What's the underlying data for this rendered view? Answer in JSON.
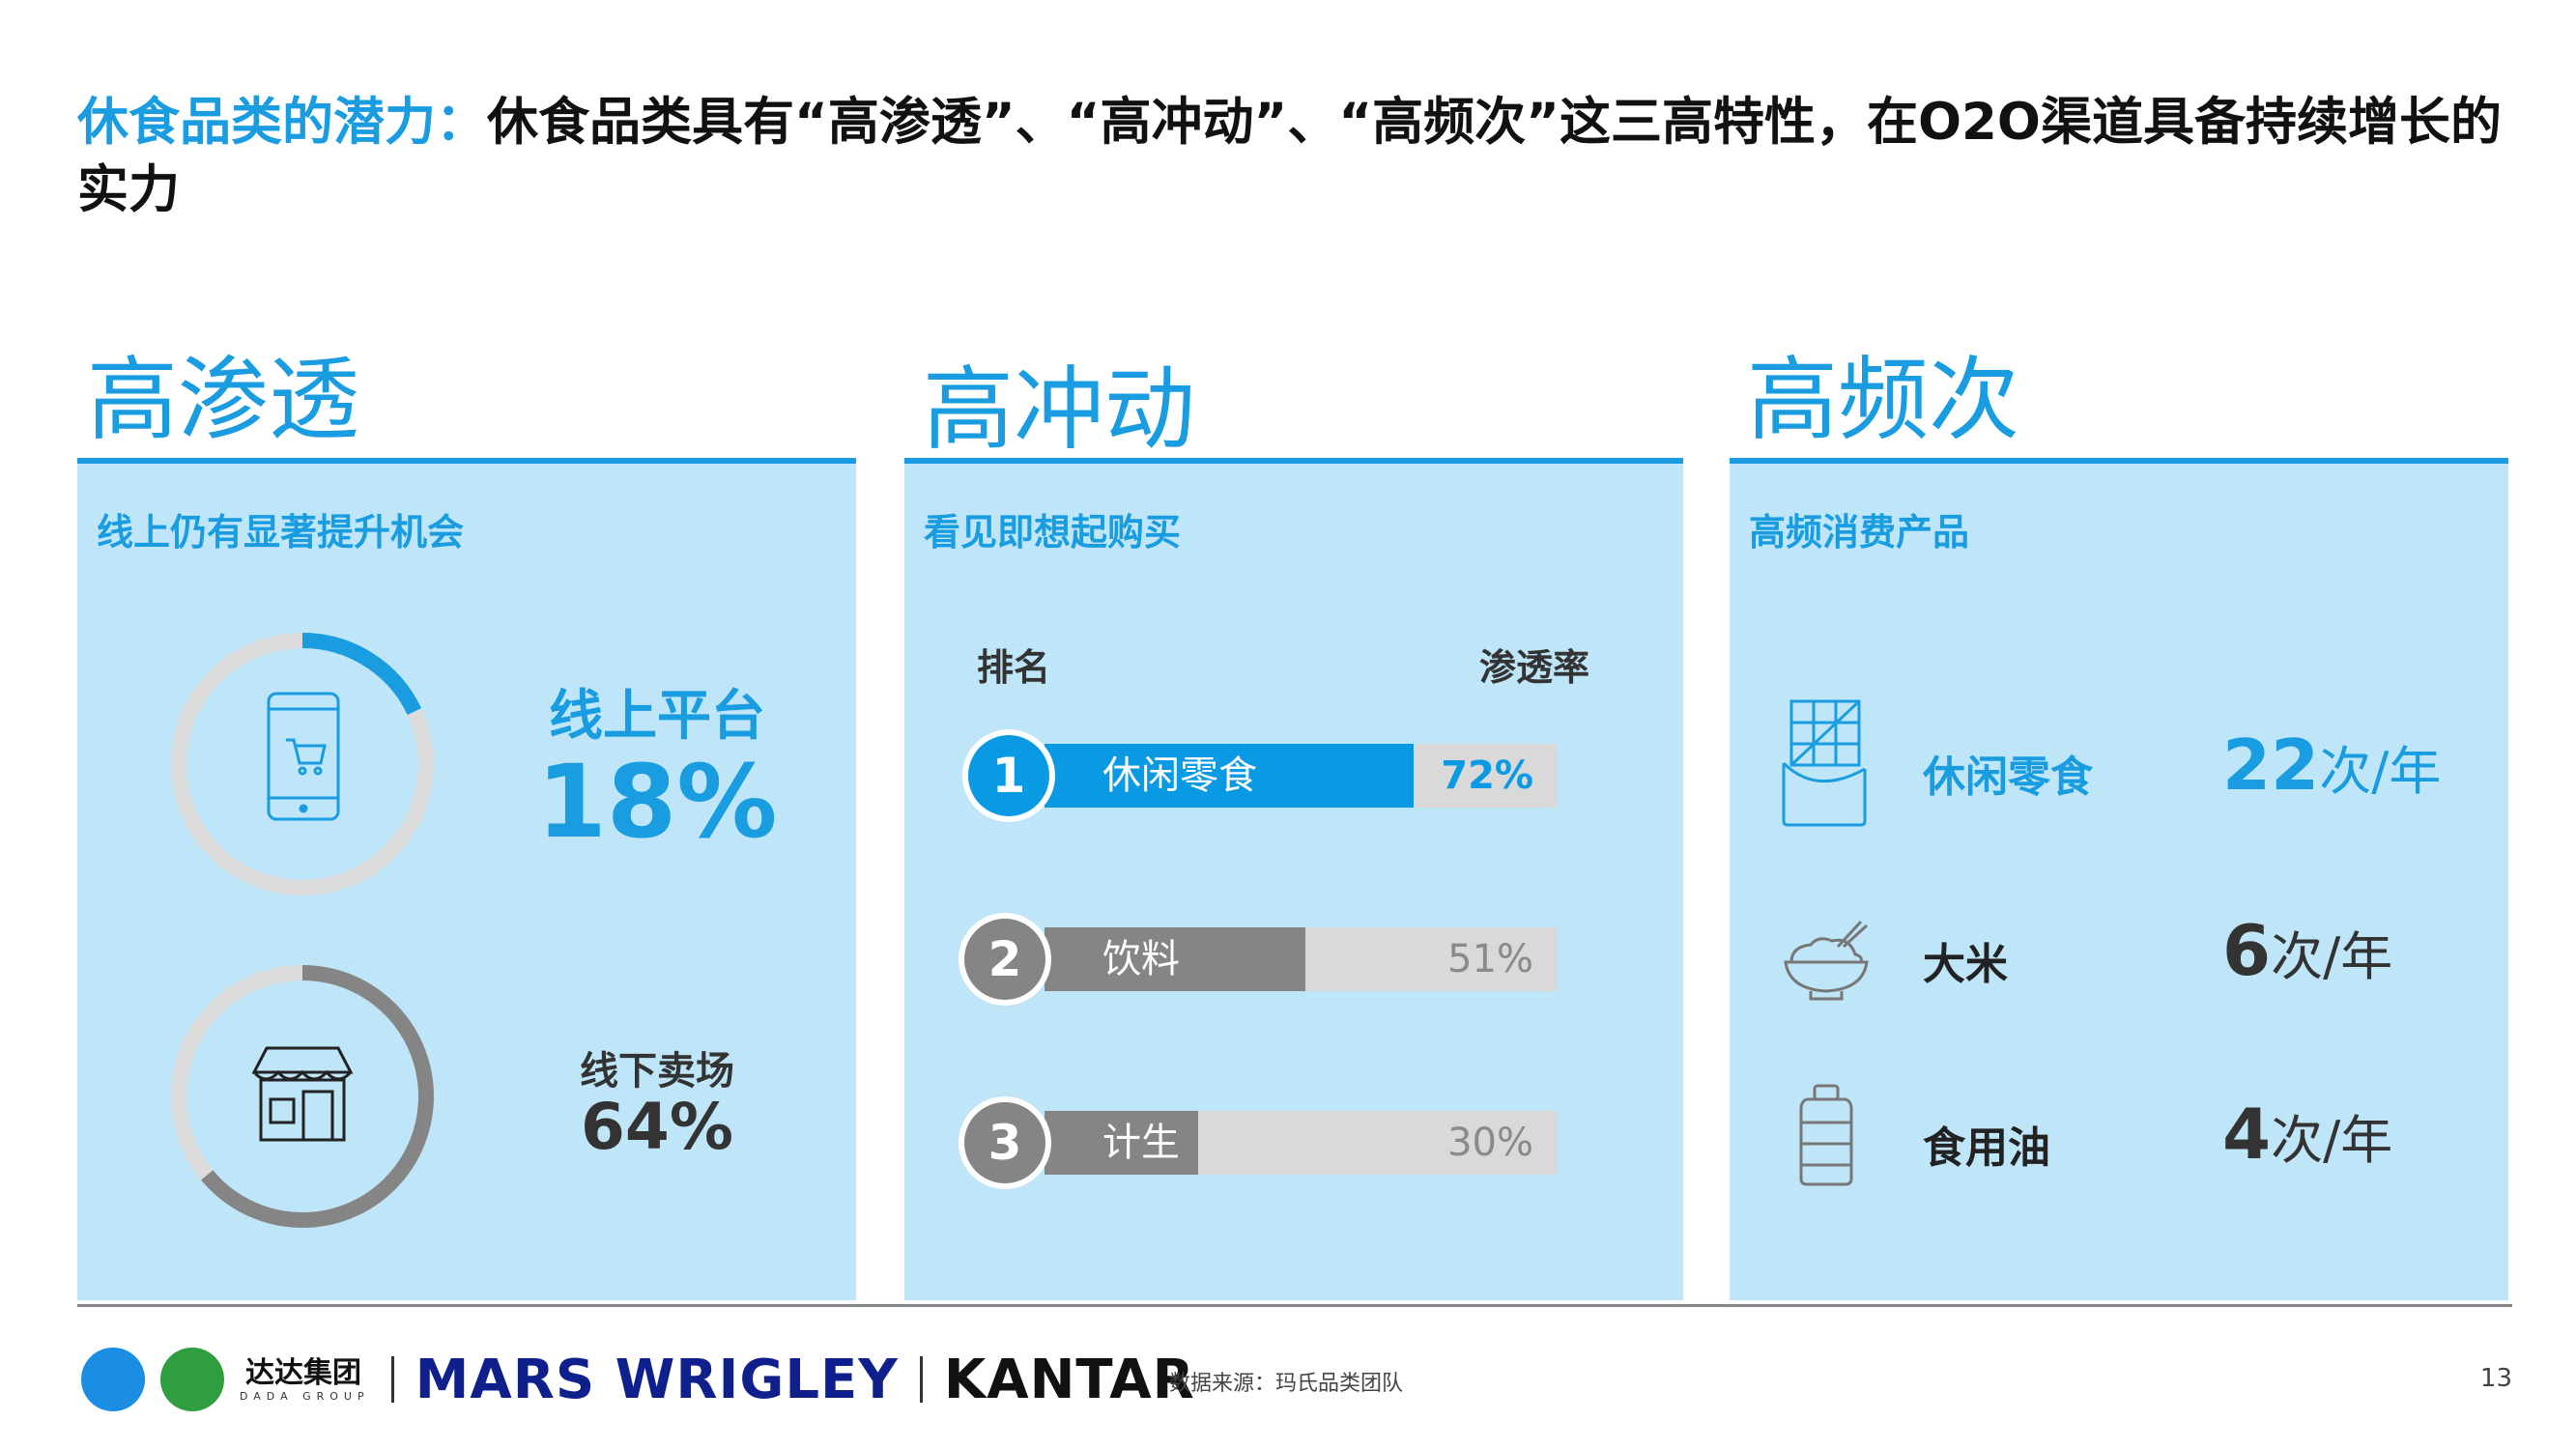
{
  "title": {
    "accent": "休食品类的潜力：",
    "main": "休食品类具有“高渗透”、“高冲动”、“高频次”这三高特性，在O2O渠道具备持续增长的实力"
  },
  "penetration": {
    "heading": "高渗透",
    "subtitle": "线上仍有显著提升机会",
    "online": {
      "label": "线上平台",
      "value": "18%",
      "fraction": 0.18,
      "icon": "phone-cart-icon"
    },
    "offline": {
      "label": "线下卖场",
      "value": "64%",
      "fraction": 0.64,
      "icon": "storefront-icon"
    }
  },
  "impulse": {
    "heading": "高冲动",
    "subtitle": "看见即想起购买",
    "rank_header": "排名",
    "rate_header": "渗透率",
    "items": [
      {
        "rank": "1",
        "name": "休闲零食",
        "pct": "72%",
        "value": 0.72,
        "color": "#0a9ae4"
      },
      {
        "rank": "2",
        "name": "饮料",
        "pct": "51%",
        "value": 0.51,
        "color": "#858585"
      },
      {
        "rank": "3",
        "name": "计生",
        "pct": "30%",
        "value": 0.3,
        "color": "#858585"
      }
    ]
  },
  "frequency": {
    "heading": "高频次",
    "subtitle": "高频消费产品",
    "items": [
      {
        "name": "休闲零食",
        "num": "22",
        "unit": "次/年",
        "icon": "snack-bag-icon",
        "highlight": true
      },
      {
        "name": "大米",
        "num": "6",
        "unit": "次/年",
        "icon": "rice-bowl-icon",
        "highlight": false
      },
      {
        "name": "食用油",
        "num": "4",
        "unit": "次/年",
        "icon": "oil-bottle-icon",
        "highlight": false
      }
    ]
  },
  "footer": {
    "dada_name": "达达集团",
    "dada_sub": "DADA GROUP",
    "mars": "MARS WRIGLEY",
    "kantar": "KANTAR",
    "source": "数据来源：玛氏品类团队",
    "page": "13"
  },
  "colors": {
    "accent": "#1a9ce0",
    "panel": "#bfe6f8",
    "gray": "#858585",
    "track": "#d9d9d9"
  }
}
